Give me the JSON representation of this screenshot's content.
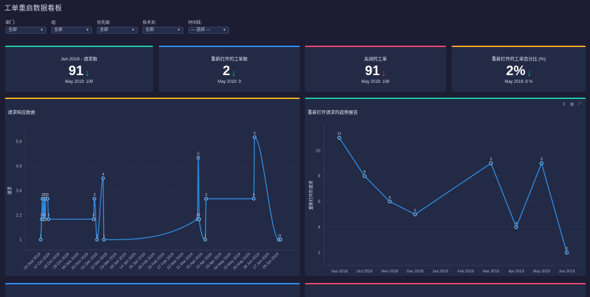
{
  "page": {
    "title": "工单重启数据看板"
  },
  "filters": [
    {
      "label": "部门:",
      "value": "全部"
    },
    {
      "label": "组:",
      "value": "全部"
    },
    {
      "label": "优先级:",
      "value": "全部"
    },
    {
      "label": "技术员:",
      "value": "全部"
    },
    {
      "label": "时间段:",
      "value": "--- 选择 ---"
    }
  ],
  "cards": [
    {
      "title": "Jun 2019 - 请求数",
      "value": "91",
      "trend": "down",
      "arrow": "↓",
      "arrow_color": "#1db37a",
      "accent": "#20c9a6",
      "sub": "May 2019: 109"
    },
    {
      "title": "重新打开的工单数",
      "value": "2",
      "trend": "down",
      "arrow": "↓",
      "arrow_color": "#1db37a",
      "accent": "#2d8ef0",
      "sub": "May 2019: 9"
    },
    {
      "title": "关闭的工单",
      "value": "91",
      "trend": "down",
      "arrow": "↓",
      "arrow_color": "#e0435f",
      "accent": "#e84a6f",
      "sub": "May 2019: 108"
    },
    {
      "title": "重新打开的工单百分比 (%)",
      "value": "2%",
      "trend": "down",
      "arrow": "↓",
      "arrow_color": "#1db37a",
      "accent": "#f5a623",
      "sub": "May 2019: 8 %"
    }
  ],
  "panels": {
    "left": {
      "title": "请求响应数据",
      "accent": "#f2b01e"
    },
    "right": {
      "title": "重新打开请求的趋势报告",
      "accent": "#20c9a6",
      "tools": [
        {
          "name": "swap-icon",
          "glyph": "⇅"
        },
        {
          "name": "building-icon",
          "glyph": "▦"
        },
        {
          "name": "expand-icon",
          "glyph": "⤢"
        }
      ]
    },
    "bottom_left": {
      "accent": "#2d8ef0"
    },
    "bottom_right": {
      "accent": "#e84a6f"
    }
  },
  "chart_data": [
    {
      "type": "line",
      "title": "请求响应数据",
      "xlabel": "",
      "ylabel": "请求",
      "ylim": [
        0.5,
        6.6
      ],
      "yticks": [
        1,
        2.2,
        3.4,
        4.6,
        5.8
      ],
      "grid": true,
      "curve": "smooth",
      "line_color": "#2f8fe6",
      "x_tick_labels": [
        "26 Sep 2018",
        "07 Oct 2018",
        "18 Oct 2018",
        "29 Oct 2018",
        "09 Nov 2018",
        "20 Nov 2018",
        "01 Dec 2018",
        "12 Dec 2018",
        "23 Dec 2018",
        "03 Jan 2019",
        "14 Jan 2019",
        "25 Jan 2019",
        "05 Feb 2019",
        "16 Feb 2019",
        "27 Feb 2019",
        "10 Mar 2019",
        "21 Mar 2019",
        "01 Apr 2019",
        "12 Apr 2019",
        "23 Apr 2019",
        "04 May 2019",
        "15 May 2019",
        "26 May 2019",
        "06 Jun 2019",
        "17 Jun 2019",
        "28 Jun 2019"
      ],
      "x_range": [
        "2018-09-26",
        "2019-06-28"
      ],
      "points": [
        {
          "x": "2018-09-26",
          "y": 1
        },
        {
          "x": "2018-09-27",
          "y": 2
        },
        {
          "x": "2018-09-28",
          "y": 3
        },
        {
          "x": "2018-09-29",
          "y": 2
        },
        {
          "x": "2018-09-30",
          "y": 3
        },
        {
          "x": "2018-10-01",
          "y": 2
        },
        {
          "x": "2018-10-02",
          "y": 3
        },
        {
          "x": "2018-10-04",
          "y": 3
        },
        {
          "x": "2018-10-05",
          "y": 2
        },
        {
          "x": "2018-11-26",
          "y": 2
        },
        {
          "x": "2018-11-27",
          "y": 3
        },
        {
          "x": "2018-11-30",
          "y": 1
        },
        {
          "x": "2018-12-07",
          "y": 4
        },
        {
          "x": "2018-12-08",
          "y": 1
        },
        {
          "x": "2019-03-26",
          "y": 2
        },
        {
          "x": "2019-03-27",
          "y": 5
        },
        {
          "x": "2019-03-28",
          "y": 2
        },
        {
          "x": "2019-04-04",
          "y": 1
        },
        {
          "x": "2019-04-05",
          "y": 3
        },
        {
          "x": "2019-05-30",
          "y": 3
        },
        {
          "x": "2019-05-31",
          "y": 6
        },
        {
          "x": "2019-06-28",
          "y": 1
        },
        {
          "x": "2019-06-30",
          "y": 1
        }
      ]
    },
    {
      "type": "line",
      "title": "重新打开请求的趋势报告",
      "xlabel": "",
      "ylabel": "重新打开的请求",
      "ylim": [
        1,
        12
      ],
      "yticks": [
        2,
        4,
        6,
        8,
        10
      ],
      "grid": true,
      "curve": "linear",
      "line_color": "#2f8fe6",
      "categories": [
        "Sep 2018",
        "Oct 2018",
        "Nov 2018",
        "Dec 2018",
        "Jan 2019",
        "Feb 2019",
        "Mar 2019",
        "Apr 2019",
        "May 2019",
        "Jun 2019"
      ],
      "values": [
        11,
        8,
        6,
        5,
        null,
        null,
        9,
        4,
        9,
        2
      ]
    }
  ]
}
